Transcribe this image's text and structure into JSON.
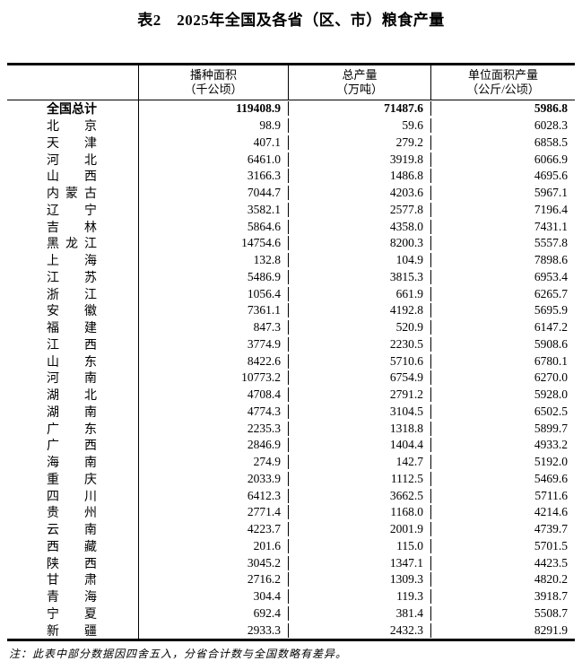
{
  "page_title": "表2　2025年全国及各省（区、市）粮食产量",
  "table": {
    "columns": [
      {
        "line1": "播种面积",
        "line2": "（千公顷）"
      },
      {
        "line1": "总产量",
        "line2": "（万吨）"
      },
      {
        "line1": "单位面积产量",
        "line2": "（公斤/公顷）"
      }
    ],
    "rows": [
      {
        "name": "全国总计",
        "bold": true,
        "area": "119408.9",
        "output": "71487.6",
        "yield": "5986.8"
      },
      {
        "name": "北京",
        "bold": false,
        "area": "98.9",
        "output": "59.6",
        "yield": "6028.3"
      },
      {
        "name": "天津",
        "bold": false,
        "area": "407.1",
        "output": "279.2",
        "yield": "6858.5"
      },
      {
        "name": "河北",
        "bold": false,
        "area": "6461.0",
        "output": "3919.8",
        "yield": "6066.9"
      },
      {
        "name": "山西",
        "bold": false,
        "area": "3166.3",
        "output": "1486.8",
        "yield": "4695.6"
      },
      {
        "name": "内蒙古",
        "bold": false,
        "area": "7044.7",
        "output": "4203.6",
        "yield": "5967.1"
      },
      {
        "name": "辽宁",
        "bold": false,
        "area": "3582.1",
        "output": "2577.8",
        "yield": "7196.4"
      },
      {
        "name": "吉林",
        "bold": false,
        "area": "5864.6",
        "output": "4358.0",
        "yield": "7431.1"
      },
      {
        "name": "黑龙江",
        "bold": false,
        "area": "14754.6",
        "output": "8200.3",
        "yield": "5557.8"
      },
      {
        "name": "上海",
        "bold": false,
        "area": "132.8",
        "output": "104.9",
        "yield": "7898.6"
      },
      {
        "name": "江苏",
        "bold": false,
        "area": "5486.9",
        "output": "3815.3",
        "yield": "6953.4"
      },
      {
        "name": "浙江",
        "bold": false,
        "area": "1056.4",
        "output": "661.9",
        "yield": "6265.7"
      },
      {
        "name": "安徽",
        "bold": false,
        "area": "7361.1",
        "output": "4192.8",
        "yield": "5695.9"
      },
      {
        "name": "福建",
        "bold": false,
        "area": "847.3",
        "output": "520.9",
        "yield": "6147.2"
      },
      {
        "name": "江西",
        "bold": false,
        "area": "3774.9",
        "output": "2230.5",
        "yield": "5908.6"
      },
      {
        "name": "山东",
        "bold": false,
        "area": "8422.6",
        "output": "5710.6",
        "yield": "6780.1"
      },
      {
        "name": "河南",
        "bold": false,
        "area": "10773.2",
        "output": "6754.9",
        "yield": "6270.0"
      },
      {
        "name": "湖北",
        "bold": false,
        "area": "4708.4",
        "output": "2791.2",
        "yield": "5928.0"
      },
      {
        "name": "湖南",
        "bold": false,
        "area": "4774.3",
        "output": "3104.5",
        "yield": "6502.5"
      },
      {
        "name": "广东",
        "bold": false,
        "area": "2235.3",
        "output": "1318.8",
        "yield": "5899.7"
      },
      {
        "name": "广西",
        "bold": false,
        "area": "2846.9",
        "output": "1404.4",
        "yield": "4933.2"
      },
      {
        "name": "海南",
        "bold": false,
        "area": "274.9",
        "output": "142.7",
        "yield": "5192.0"
      },
      {
        "name": "重庆",
        "bold": false,
        "area": "2033.9",
        "output": "1112.5",
        "yield": "5469.6"
      },
      {
        "name": "四川",
        "bold": false,
        "area": "6412.3",
        "output": "3662.5",
        "yield": "5711.6"
      },
      {
        "name": "贵州",
        "bold": false,
        "area": "2771.4",
        "output": "1168.0",
        "yield": "4214.6"
      },
      {
        "name": "云南",
        "bold": false,
        "area": "4223.7",
        "output": "2001.9",
        "yield": "4739.7"
      },
      {
        "name": "西藏",
        "bold": false,
        "area": "201.6",
        "output": "115.0",
        "yield": "5701.5"
      },
      {
        "name": "陕西",
        "bold": false,
        "area": "3045.2",
        "output": "1347.1",
        "yield": "4423.5"
      },
      {
        "name": "甘肃",
        "bold": false,
        "area": "2716.2",
        "output": "1309.3",
        "yield": "4820.2"
      },
      {
        "name": "青海",
        "bold": false,
        "area": "304.4",
        "output": "119.3",
        "yield": "3918.7"
      },
      {
        "name": "宁夏",
        "bold": false,
        "area": "692.4",
        "output": "381.4",
        "yield": "5508.7"
      },
      {
        "name": "新疆",
        "bold": false,
        "area": "2933.3",
        "output": "2432.3",
        "yield": "8291.9"
      }
    ]
  },
  "footnote": "注：此表中部分数据因四舍五入，分省合计数与全国数略有差异。"
}
